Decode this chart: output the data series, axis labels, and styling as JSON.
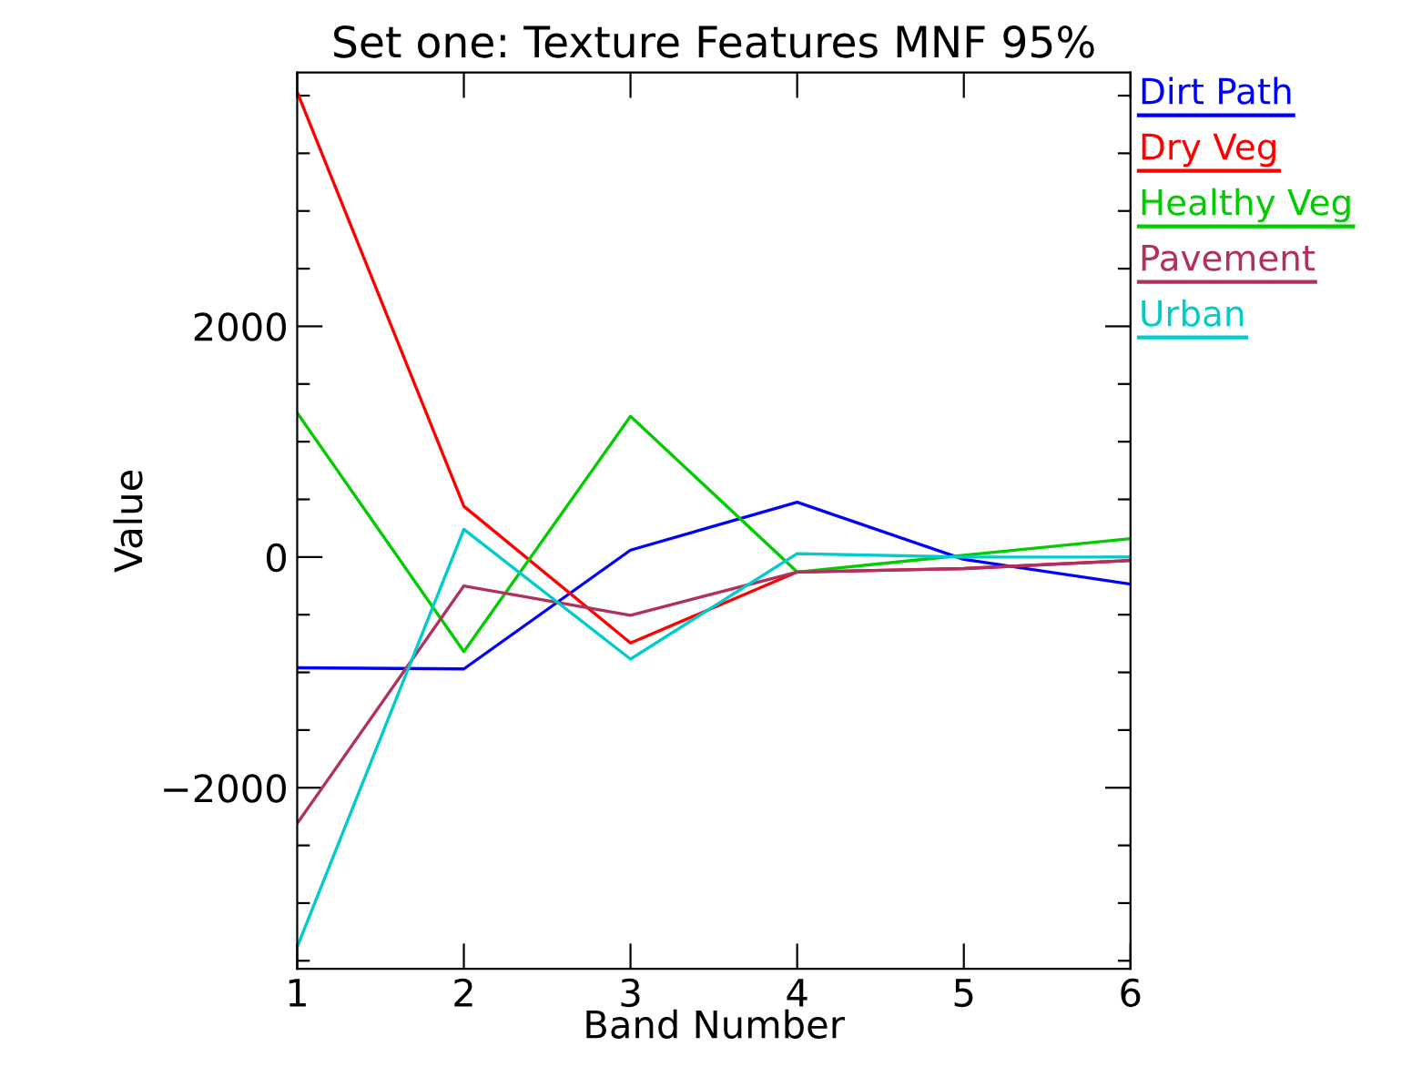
{
  "chart_data": {
    "type": "line",
    "title": "Set one: Texture Features MNF 95%",
    "xlabel": "Band Number",
    "ylabel": "Value",
    "x": [
      1,
      2,
      3,
      4,
      5,
      6
    ],
    "series": [
      {
        "name": "Dirt Path",
        "color": "#0000ff",
        "values": [
          -960,
          -970,
          60,
          475,
          -20,
          -235
        ]
      },
      {
        "name": "Dry Veg",
        "color": "#ff0000",
        "values": [
          4030,
          440,
          -745,
          -130,
          -100,
          -30
        ]
      },
      {
        "name": "Healthy Veg",
        "color": "#00cc00",
        "values": [
          1250,
          -820,
          1220,
          -130,
          15,
          160
        ]
      },
      {
        "name": "Pavement",
        "color": "#b03060",
        "values": [
          -2310,
          -250,
          -505,
          -130,
          -100,
          -30
        ]
      },
      {
        "name": "Urban",
        "color": "#00cccc",
        "values": [
          -3380,
          240,
          -885,
          30,
          0,
          0
        ]
      }
    ],
    "xlim": [
      1,
      6
    ],
    "xticks": [
      1,
      2,
      3,
      4,
      5,
      6
    ],
    "ylim": [
      -3570,
      4200
    ],
    "yticks": [
      {
        "value": -3500,
        "label": null
      },
      {
        "value": -3000,
        "label": null
      },
      {
        "value": -2500,
        "label": null
      },
      -2000,
      {
        "value": -1500,
        "label": null
      },
      {
        "value": -1000,
        "label": null
      },
      {
        "value": -500,
        "label": null
      },
      0,
      {
        "value": 500,
        "label": null
      },
      {
        "value": 1000,
        "label": null
      },
      {
        "value": 1500,
        "label": null
      },
      2000,
      {
        "value": 2500,
        "label": null
      },
      {
        "value": 3000,
        "label": null
      },
      {
        "value": 3500,
        "label": null
      },
      {
        "value": 4000,
        "label": null
      }
    ],
    "grid": false,
    "legend": "right",
    "marker": "none",
    "line_style": "solid"
  }
}
